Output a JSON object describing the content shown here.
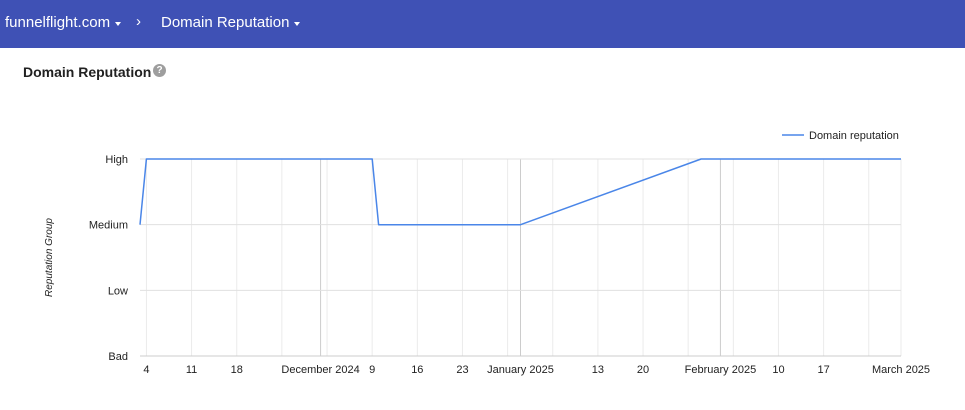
{
  "header": {
    "domain": "funnelflight.com",
    "separator": "›",
    "page": "Domain Reputation"
  },
  "section": {
    "title": "Domain Reputation",
    "help": "?"
  },
  "colors": {
    "header_bg": "#3f51b5",
    "series": "#4a86e8",
    "grid": "#e0e0e0"
  },
  "chart_data": {
    "type": "line",
    "title": "",
    "ylabel": "Reputation Group",
    "xlabel": "",
    "y_categories": [
      "Bad",
      "Low",
      "Medium",
      "High"
    ],
    "x_range": [
      "2024-11-03",
      "2025-03-01"
    ],
    "x_ticks": [
      {
        "date": "2024-11-04",
        "label": "4"
      },
      {
        "date": "2024-11-11",
        "label": "11"
      },
      {
        "date": "2024-11-18",
        "label": "18"
      },
      {
        "date": "2024-12-01",
        "label": "December 2024"
      },
      {
        "date": "2024-12-09",
        "label": "9"
      },
      {
        "date": "2024-12-16",
        "label": "16"
      },
      {
        "date": "2024-12-23",
        "label": "23"
      },
      {
        "date": "2025-01-01",
        "label": "January 2025"
      },
      {
        "date": "2025-01-13",
        "label": "13"
      },
      {
        "date": "2025-01-20",
        "label": "20"
      },
      {
        "date": "2025-02-01",
        "label": "February 2025"
      },
      {
        "date": "2025-02-10",
        "label": "10"
      },
      {
        "date": "2025-02-17",
        "label": "17"
      },
      {
        "date": "2025-03-01",
        "label": "March 2025"
      }
    ],
    "series": [
      {
        "name": "Domain reputation",
        "points": [
          {
            "x": "2024-11-03",
            "y": "Medium"
          },
          {
            "x": "2024-11-04",
            "y": "High"
          },
          {
            "x": "2024-12-09",
            "y": "High"
          },
          {
            "x": "2024-12-10",
            "y": "Medium"
          },
          {
            "x": "2025-01-01",
            "y": "Medium"
          },
          {
            "x": "2025-01-29",
            "y": "High"
          },
          {
            "x": "2025-03-01",
            "y": "High"
          }
        ]
      }
    ],
    "legend": "top-right",
    "grid": true
  }
}
